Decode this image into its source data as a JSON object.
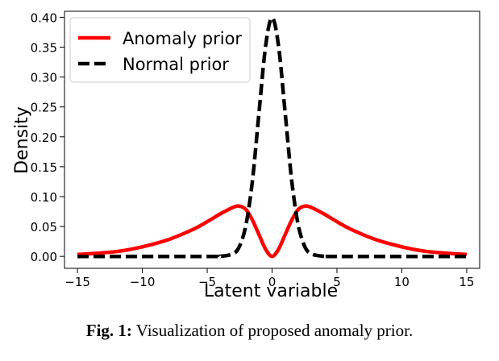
{
  "chart_data": {
    "type": "line",
    "xlabel": "Latent variable",
    "ylabel": "Density",
    "xlim": [
      -16,
      16
    ],
    "ylim": [
      -0.02,
      0.41
    ],
    "xticks": [
      -15,
      -10,
      -5,
      0,
      5,
      10,
      15
    ],
    "xtick_labels": [
      "−15",
      "−10",
      "−5",
      "0",
      "5",
      "10",
      "15"
    ],
    "yticks": [
      0.0,
      0.05,
      0.1,
      0.15,
      0.2,
      0.25,
      0.3,
      0.35,
      0.4
    ],
    "ytick_labels": [
      "0.00",
      "0.05",
      "0.10",
      "0.15",
      "0.20",
      "0.25",
      "0.30",
      "0.35",
      "0.40"
    ],
    "grid": false,
    "legend_position": "top-left",
    "series": [
      {
        "name": "Anomaly prior",
        "color": "#ff0000",
        "style": "solid",
        "x": [
          -15,
          -12,
          -10,
          -8,
          -6,
          -5,
          -4,
          -3,
          -2.5,
          -2,
          -1.5,
          -1,
          -0.5,
          0,
          0.5,
          1,
          1.5,
          2,
          2.5,
          3,
          4,
          5,
          6,
          8,
          10,
          12,
          15
        ],
        "y": [
          0.003,
          0.008,
          0.016,
          0.028,
          0.046,
          0.058,
          0.071,
          0.082,
          0.084,
          0.078,
          0.06,
          0.036,
          0.012,
          0.0,
          0.012,
          0.036,
          0.06,
          0.078,
          0.084,
          0.082,
          0.071,
          0.058,
          0.046,
          0.028,
          0.016,
          0.008,
          0.003
        ]
      },
      {
        "name": "Normal prior",
        "color": "#000000",
        "style": "dashed",
        "x": [
          -15,
          -5,
          -4,
          -3,
          -2.5,
          -2,
          -1.5,
          -1,
          -0.5,
          0,
          0.5,
          1,
          1.5,
          2,
          2.5,
          3,
          4,
          5,
          15
        ],
        "y": [
          0.0,
          0.0,
          0.0001,
          0.0044,
          0.0175,
          0.054,
          0.1295,
          0.242,
          0.352,
          0.399,
          0.352,
          0.242,
          0.1295,
          0.054,
          0.0175,
          0.0044,
          0.0001,
          0.0,
          0.0
        ]
      }
    ]
  },
  "caption": {
    "label": "Fig. 1:",
    "text": "Visualization of proposed anomaly prior."
  }
}
